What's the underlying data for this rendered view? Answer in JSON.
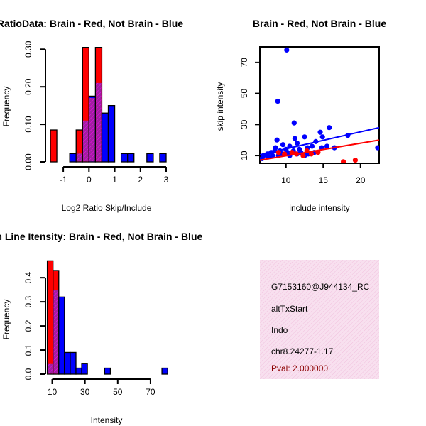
{
  "chart_data": [
    {
      "type": "bar",
      "subtype": "histogram-overlay",
      "title": "RatioData: Brain - Red, Not Brain - Blue",
      "xlabel": "Log2 Ratio Skip/Include",
      "ylabel": "Frequency",
      "xlim": [
        -1.5,
        3.0
      ],
      "ylim": [
        0,
        0.31
      ],
      "xticks": [
        "-1",
        "0",
        "1",
        "2",
        "3"
      ],
      "yticks": [
        "0.00",
        "0.10",
        "0.20",
        "0.30"
      ],
      "ytick_values": [
        0,
        0.1,
        0.2,
        0.3
      ],
      "xtick_values": [
        -1,
        0,
        1,
        2,
        3
      ],
      "bin_width": 0.25,
      "colors": {
        "red": "#ff0000",
        "blue": "#0000ff",
        "overlap": "#a020a0"
      },
      "series": [
        {
          "name": "Brain",
          "color": "#ff0000",
          "bins": [
            {
              "x0": -1.5,
              "value": 0.085
            },
            {
              "x0": -0.5,
              "value": 0.085
            },
            {
              "x0": -0.25,
              "value": 0.305
            },
            {
              "x0": 0.0,
              "value": 0.17
            },
            {
              "x0": 0.25,
              "value": 0.305
            }
          ]
        },
        {
          "name": "Not Brain",
          "color": "#0000ff",
          "bins": [
            {
              "x0": -0.75,
              "value": 0.022
            },
            {
              "x0": -0.5,
              "value": 0.022
            },
            {
              "x0": -0.25,
              "value": 0.11
            },
            {
              "x0": 0.0,
              "value": 0.175
            },
            {
              "x0": 0.25,
              "value": 0.21
            },
            {
              "x0": 0.5,
              "value": 0.13
            },
            {
              "x0": 0.75,
              "value": 0.15
            },
            {
              "x0": 1.25,
              "value": 0.022
            },
            {
              "x0": 1.5,
              "value": 0.022
            },
            {
              "x0": 2.25,
              "value": 0.022
            },
            {
              "x0": 2.75,
              "value": 0.022
            }
          ]
        }
      ]
    },
    {
      "type": "scatter",
      "title": "Brain - Red, Not Brain - Blue",
      "xlabel": "include intensity",
      "ylabel": "skip intensity",
      "xlim": [
        6.5,
        22.5
      ],
      "ylim": [
        5,
        80
      ],
      "xticks": [
        "10",
        "15",
        "20"
      ],
      "xtick_values": [
        10,
        15,
        20
      ],
      "yticks": [
        "10",
        "30",
        "50",
        "70"
      ],
      "ytick_values": [
        10,
        30,
        50,
        70
      ],
      "series": [
        {
          "name": "Not Brain",
          "color": "#0000ff",
          "points": [
            [
              10.1,
              78
            ],
            [
              8.9,
              45
            ],
            [
              11.1,
              31
            ],
            [
              15.8,
              28
            ],
            [
              14.6,
              25
            ],
            [
              18.3,
              23
            ],
            [
              14.9,
              22
            ],
            [
              12.5,
              22
            ],
            [
              11.2,
              21
            ],
            [
              8.8,
              20
            ],
            [
              14.0,
              19
            ],
            [
              11.5,
              18
            ],
            [
              10.5,
              16
            ],
            [
              9.6,
              17
            ],
            [
              12.9,
              15
            ],
            [
              13.5,
              16
            ],
            [
              14.8,
              15
            ],
            [
              15.5,
              16
            ],
            [
              8.6,
              15
            ],
            [
              9.2,
              13
            ],
            [
              10.0,
              14
            ],
            [
              11.0,
              13
            ],
            [
              12.0,
              12
            ],
            [
              13.0,
              11
            ],
            [
              13.8,
              12
            ],
            [
              7.5,
              11
            ],
            [
              8.0,
              12
            ],
            [
              8.5,
              13
            ],
            [
              9.5,
              11
            ],
            [
              10.5,
              10
            ],
            [
              11.5,
              11
            ],
            [
              12.5,
              10
            ],
            [
              7.0,
              10
            ],
            [
              7.6,
              9
            ],
            [
              8.2,
              10
            ],
            [
              9.0,
              10
            ],
            [
              10.2,
              12
            ],
            [
              11.8,
              14
            ],
            [
              6.8,
              8
            ],
            [
              16.5,
              15
            ],
            [
              22.3,
              15
            ]
          ],
          "fit": [
            [
              6.5,
              10.5
            ],
            [
              22.5,
              28
            ]
          ]
        },
        {
          "name": "Brain",
          "color": "#ff0000",
          "points": [
            [
              17.7,
              6
            ],
            [
              19.3,
              7
            ],
            [
              12.3,
              10
            ],
            [
              14.3,
              12
            ],
            [
              13.4,
              11
            ],
            [
              10.8,
              12
            ],
            [
              9.8,
              11
            ],
            [
              12.8,
              13
            ],
            [
              11.4,
              11
            ],
            [
              9.0,
              12
            ]
          ],
          "fit": [
            [
              6.5,
              7
            ],
            [
              22.5,
              20
            ]
          ]
        }
      ]
    },
    {
      "type": "bar",
      "subtype": "histogram-overlay",
      "title": "Exon Line Itensity: Brain - Red, Not Brain - Blue",
      "xlabel": "Intensity",
      "ylabel": "Frequency",
      "xlim": [
        5,
        80
      ],
      "ylim": [
        0,
        0.48
      ],
      "xticks": [
        "10",
        "30",
        "50",
        "70"
      ],
      "xtick_values": [
        10,
        30,
        50,
        70
      ],
      "yticks": [
        "0.0",
        "0.1",
        "0.2",
        "0.3",
        "0.4"
      ],
      "ytick_values": [
        0,
        0.1,
        0.2,
        0.3,
        0.4
      ],
      "bin_width": 3.5,
      "series": [
        {
          "name": "Brain",
          "color": "#ff0000",
          "bins": [
            {
              "x0": 7,
              "value": 0.47
            },
            {
              "x0": 10.5,
              "value": 0.43
            }
          ]
        },
        {
          "name": "Not Brain",
          "color": "#0000ff",
          "bins": [
            {
              "x0": 7,
              "value": 0.045
            },
            {
              "x0": 10.5,
              "value": 0.35
            },
            {
              "x0": 14,
              "value": 0.32
            },
            {
              "x0": 17.5,
              "value": 0.09
            },
            {
              "x0": 21,
              "value": 0.09
            },
            {
              "x0": 24.5,
              "value": 0.025
            },
            {
              "x0": 28,
              "value": 0.045
            },
            {
              "x0": 42,
              "value": 0.025
            },
            {
              "x0": 77,
              "value": 0.025
            }
          ]
        }
      ]
    }
  ],
  "info_panel": {
    "background": "#f6d9ec",
    "lines": [
      "G7153160@J944134_RC",
      "altTxStart",
      "Indo",
      "chr8.24277-1.17"
    ],
    "pval": "Pval: 2.000000"
  }
}
